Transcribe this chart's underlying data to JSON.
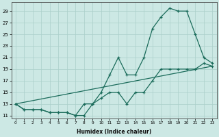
{
  "xlabel": "Humidex (Indice chaleur)",
  "bg_color": "#cce8e4",
  "grid_color": "#aacfca",
  "line_color": "#1a6b5a",
  "xlim": [
    -0.5,
    23.5
  ],
  "ylim": [
    10.5,
    30.5
  ],
  "yticks": [
    11,
    13,
    15,
    17,
    19,
    21,
    23,
    25,
    27,
    29
  ],
  "xticks": [
    0,
    1,
    2,
    3,
    4,
    5,
    6,
    7,
    8,
    9,
    10,
    11,
    12,
    13,
    14,
    15,
    16,
    17,
    18,
    19,
    20,
    21,
    22,
    23
  ],
  "line1_x": [
    0,
    1,
    2,
    3,
    4,
    5,
    6,
    7,
    8,
    9,
    10,
    11,
    12,
    13,
    14,
    15,
    16,
    17,
    18,
    19,
    20,
    21,
    22,
    23
  ],
  "line1_y": [
    13,
    12,
    12,
    12,
    11.5,
    11.5,
    11.5,
    11,
    11,
    13,
    15,
    18,
    21,
    18,
    18,
    21,
    26,
    28,
    29.5,
    29,
    29,
    25,
    21,
    20
  ],
  "line2_x": [
    0,
    1,
    2,
    3,
    4,
    5,
    6,
    7,
    8,
    9,
    10,
    11,
    12,
    13,
    14,
    15,
    16,
    17,
    18,
    19,
    20,
    21,
    22,
    23
  ],
  "line2_y": [
    13,
    12,
    12,
    12,
    11.5,
    11.5,
    11.5,
    11,
    13,
    13,
    14,
    15,
    15,
    13,
    15,
    15,
    17,
    19,
    19,
    19,
    19,
    19,
    20,
    19.5
  ],
  "line3_x": [
    0,
    23
  ],
  "line3_y": [
    13,
    19.5
  ],
  "markersize": 3.5,
  "linewidth": 0.9
}
